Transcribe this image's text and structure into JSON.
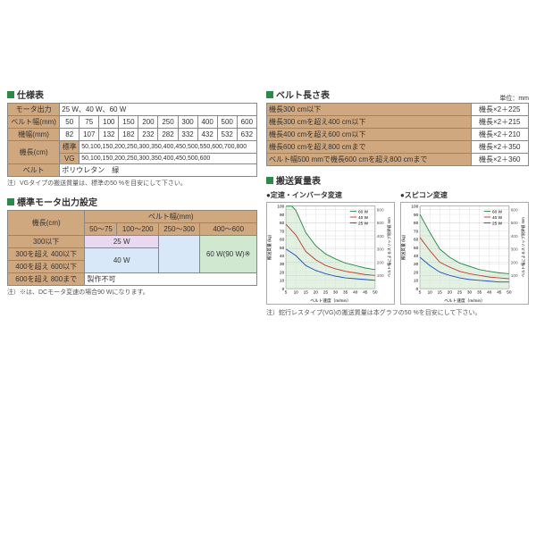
{
  "spec": {
    "title": "仕様表",
    "rows": [
      {
        "label": "モータ出力",
        "value": "25 W、40 W、60 W",
        "span": 10
      },
      {
        "label": "ベルト幅(mm)",
        "cells": [
          "50",
          "75",
          "100",
          "150",
          "200",
          "250",
          "300",
          "400",
          "500",
          "600"
        ]
      },
      {
        "label": "機幅(mm)",
        "cells": [
          "82",
          "107",
          "132",
          "182",
          "232",
          "282",
          "332",
          "432",
          "532",
          "632"
        ]
      },
      {
        "label": "機長(cm)",
        "sublabel": "標準",
        "value": "50,100,150,200,250,300,350,400,450,500,550,600,700,800"
      },
      {
        "label": "",
        "sublabel": "VG",
        "value": "50,100,150,200,250,300,350,400,450,500,600"
      },
      {
        "label": "ベルト",
        "value": "ポリウレタン　緑",
        "span": 10
      }
    ],
    "note": "注）VGタイプの搬送質量は、標準の50 %を目安にして下さい。"
  },
  "belt": {
    "title": "ベルト長さ表",
    "unit": "単位：mm",
    "rows": [
      {
        "cond": "機長300 cm以下",
        "formula": "機長×2＋225"
      },
      {
        "cond": "機長300 cmを超え400 cm以下",
        "formula": "機長×2＋215"
      },
      {
        "cond": "機長400 cmを超え600 cm以下",
        "formula": "機長×2＋210"
      },
      {
        "cond": "機長600 cmを超え800 cmまで",
        "formula": "機長×2＋350"
      },
      {
        "cond": "ベルト幅500 mmで機長600 cmを超え800 cmまで",
        "formula": "機長×2＋360"
      }
    ]
  },
  "motor": {
    "title": "標準モータ出力設定",
    "col_hdr": "ベルト幅(mm)",
    "row_hdr": "機長(cm)",
    "cols": [
      "50～75",
      "100～200",
      "250～300",
      "400～600"
    ],
    "rows": [
      "300以下",
      "300を超え 400以下",
      "400を超え 600以下",
      "600を超え 800まで"
    ],
    "cells": {
      "r0c0": "25 W",
      "r1c0": "40 W",
      "r0c3": "60 W(90 W)※",
      "r3c0": "製作不可"
    },
    "note": "注）※は、DCモータ変速の場合90 Wになります。"
  },
  "charts": {
    "title": "搬送質量表",
    "left": {
      "title": "●定速・インバータ変速"
    },
    "right": {
      "title": "●スピコン変速"
    },
    "xlabel": "ベルト速度（m/min）",
    "ylabel_l": "搬送質量",
    "yunit": "(kg)",
    "ylabel_r": "ベルト幅によるスリップ限界値",
    "legend": [
      "60 W",
      "40 W",
      "25 W"
    ],
    "legend_colors": [
      "#2a8a4a",
      "#c04030",
      "#2050c0"
    ],
    "xticks": [
      5,
      10,
      15,
      20,
      25,
      30,
      35,
      40,
      45,
      50
    ],
    "yticks": [
      0,
      10,
      20,
      30,
      40,
      50,
      60,
      70,
      80,
      90,
      100
    ],
    "yticks_r": [
      100,
      200,
      300,
      400,
      500,
      600
    ],
    "axis_font": 6,
    "grid_color": "#ccc",
    "series_left": {
      "25W": [
        [
          5,
          48
        ],
        [
          10,
          40
        ],
        [
          15,
          28
        ],
        [
          20,
          22
        ],
        [
          25,
          18
        ],
        [
          30,
          15
        ],
        [
          35,
          13
        ],
        [
          40,
          12
        ],
        [
          45,
          11
        ],
        [
          50,
          10
        ]
      ],
      "40W": [
        [
          5,
          78
        ],
        [
          10,
          65
        ],
        [
          15,
          45
        ],
        [
          20,
          35
        ],
        [
          25,
          28
        ],
        [
          30,
          24
        ],
        [
          35,
          21
        ],
        [
          40,
          19
        ],
        [
          45,
          17
        ],
        [
          50,
          16
        ]
      ],
      "60W": [
        [
          5,
          100
        ],
        [
          8,
          100
        ],
        [
          10,
          95
        ],
        [
          15,
          68
        ],
        [
          20,
          52
        ],
        [
          25,
          42
        ],
        [
          30,
          36
        ],
        [
          35,
          31
        ],
        [
          40,
          28
        ],
        [
          45,
          25
        ],
        [
          50,
          23
        ]
      ]
    },
    "series_right": {
      "25W": [
        [
          5,
          38
        ],
        [
          10,
          28
        ],
        [
          15,
          20
        ],
        [
          20,
          16
        ],
        [
          25,
          13
        ],
        [
          30,
          11
        ],
        [
          35,
          10
        ],
        [
          40,
          9
        ],
        [
          45,
          8
        ],
        [
          50,
          8
        ]
      ],
      "40W": [
        [
          5,
          62
        ],
        [
          10,
          46
        ],
        [
          15,
          32
        ],
        [
          20,
          26
        ],
        [
          25,
          21
        ],
        [
          30,
          18
        ],
        [
          35,
          16
        ],
        [
          40,
          14
        ],
        [
          45,
          13
        ],
        [
          50,
          12
        ]
      ],
      "60W": [
        [
          5,
          90
        ],
        [
          10,
          68
        ],
        [
          15,
          48
        ],
        [
          20,
          38
        ],
        [
          25,
          31
        ],
        [
          30,
          27
        ],
        [
          35,
          23
        ],
        [
          40,
          21
        ],
        [
          45,
          19
        ],
        [
          50,
          18
        ]
      ]
    },
    "belt_limits": [
      [
        100,
        16
      ],
      [
        200,
        32
      ],
      [
        300,
        48
      ],
      [
        400,
        64
      ],
      [
        500,
        80
      ],
      [
        600,
        96
      ]
    ],
    "note": "注）蛇行レスタイプ(VG)の搬送質量は本グラフの50 %を目安にして下さい。"
  }
}
